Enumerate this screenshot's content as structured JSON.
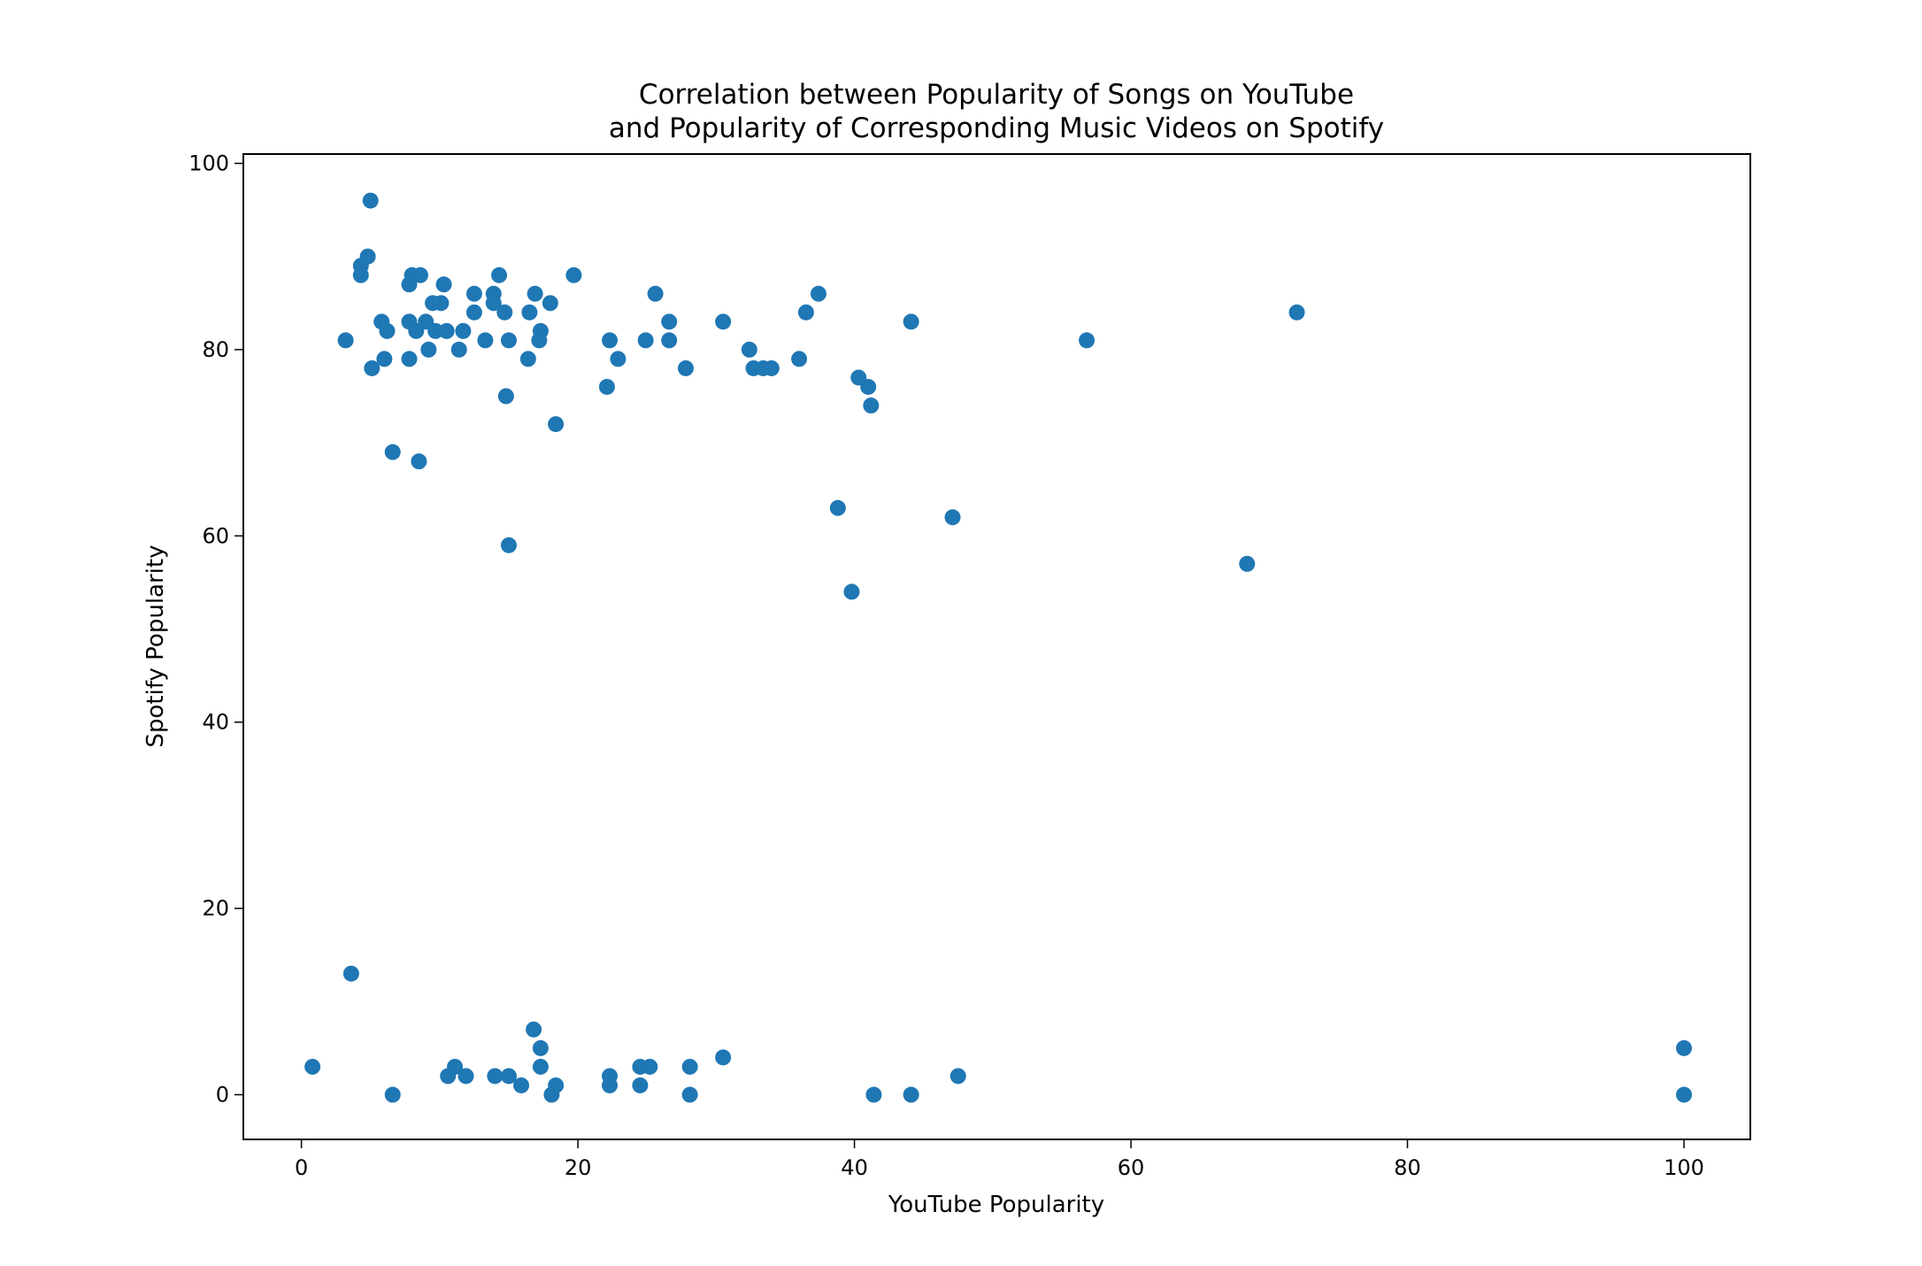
{
  "chart_data": {
    "type": "scatter",
    "title": [
      "Correlation between Popularity of Songs on YouTube",
      "and Popularity of Corresponding Music Videos on Spotify"
    ],
    "xlabel": "YouTube Popularity",
    "ylabel": "Spotify Popularity",
    "xlim": [
      -4.2,
      104.8
    ],
    "ylim": [
      -4.8,
      101
    ],
    "xticks": [
      0,
      20,
      40,
      60,
      80,
      100
    ],
    "yticks": [
      0,
      20,
      40,
      60,
      80,
      100
    ],
    "grid": false,
    "color": "#1f77b4",
    "points": [
      [
        5.0,
        96
      ],
      [
        4.8,
        90
      ],
      [
        4.3,
        89
      ],
      [
        4.3,
        88
      ],
      [
        8.0,
        88
      ],
      [
        8.6,
        88
      ],
      [
        14.3,
        88
      ],
      [
        19.7,
        88
      ],
      [
        7.8,
        87
      ],
      [
        10.3,
        87
      ],
      [
        12.5,
        86
      ],
      [
        13.9,
        86
      ],
      [
        16.9,
        86
      ],
      [
        25.6,
        86
      ],
      [
        37.4,
        86
      ],
      [
        9.5,
        85
      ],
      [
        10.1,
        85
      ],
      [
        13.9,
        85
      ],
      [
        18.0,
        85
      ],
      [
        12.5,
        84
      ],
      [
        14.7,
        84
      ],
      [
        16.5,
        84
      ],
      [
        36.5,
        84
      ],
      [
        72.0,
        84
      ],
      [
        5.8,
        83
      ],
      [
        7.8,
        83
      ],
      [
        9.0,
        83
      ],
      [
        26.6,
        83
      ],
      [
        30.5,
        83
      ],
      [
        44.1,
        83
      ],
      [
        6.2,
        82
      ],
      [
        8.3,
        82
      ],
      [
        9.7,
        82
      ],
      [
        10.5,
        82
      ],
      [
        11.7,
        82
      ],
      [
        17.3,
        82
      ],
      [
        3.2,
        81
      ],
      [
        13.3,
        81
      ],
      [
        15.0,
        81
      ],
      [
        17.2,
        81
      ],
      [
        22.3,
        81
      ],
      [
        24.9,
        81
      ],
      [
        26.6,
        81
      ],
      [
        56.8,
        81
      ],
      [
        9.2,
        80
      ],
      [
        11.4,
        80
      ],
      [
        32.4,
        80
      ],
      [
        6.0,
        79
      ],
      [
        7.8,
        79
      ],
      [
        16.4,
        79
      ],
      [
        22.9,
        79
      ],
      [
        36.0,
        79
      ],
      [
        5.1,
        78
      ],
      [
        27.8,
        78
      ],
      [
        32.7,
        78
      ],
      [
        33.4,
        78
      ],
      [
        34.0,
        78
      ],
      [
        40.3,
        77
      ],
      [
        22.1,
        76
      ],
      [
        41.0,
        76
      ],
      [
        14.8,
        75
      ],
      [
        41.2,
        74
      ],
      [
        18.4,
        72
      ],
      [
        6.6,
        69
      ],
      [
        8.5,
        68
      ],
      [
        38.8,
        63
      ],
      [
        47.1,
        62
      ],
      [
        15.0,
        59
      ],
      [
        68.4,
        57
      ],
      [
        39.8,
        54
      ],
      [
        3.6,
        13
      ],
      [
        16.8,
        7
      ],
      [
        17.3,
        5
      ],
      [
        100.0,
        5
      ],
      [
        30.5,
        4
      ],
      [
        0.8,
        3
      ],
      [
        11.1,
        3
      ],
      [
        17.3,
        3
      ],
      [
        24.5,
        3
      ],
      [
        25.2,
        3
      ],
      [
        28.1,
        3
      ],
      [
        10.6,
        2
      ],
      [
        11.9,
        2
      ],
      [
        14.0,
        2
      ],
      [
        15.0,
        2
      ],
      [
        22.3,
        2
      ],
      [
        47.5,
        2
      ],
      [
        15.9,
        1
      ],
      [
        18.4,
        1
      ],
      [
        22.3,
        1
      ],
      [
        24.5,
        1
      ],
      [
        6.6,
        0
      ],
      [
        18.1,
        0
      ],
      [
        28.1,
        0
      ],
      [
        41.4,
        0
      ],
      [
        44.1,
        0
      ],
      [
        100.0,
        0
      ]
    ]
  }
}
